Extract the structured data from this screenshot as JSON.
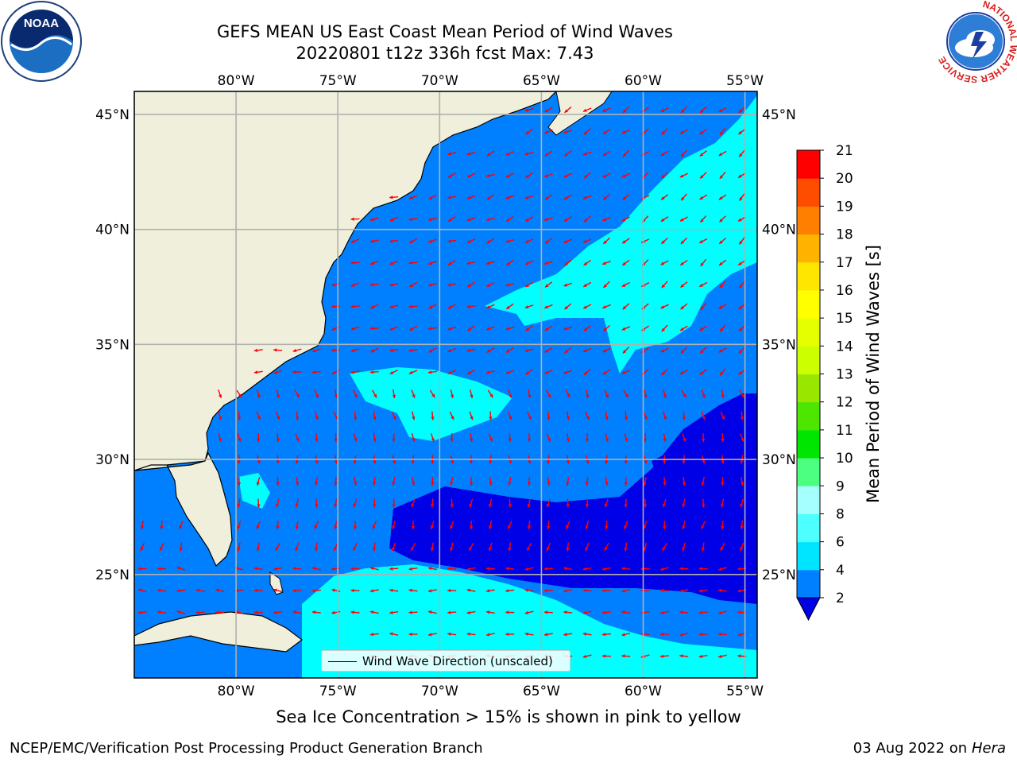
{
  "title": {
    "line1": "GEFS MEAN US East Coast Mean Period of Wind Waves",
    "line2": "20220801 t12z 336h fcst   Max: 7.43"
  },
  "logos": {
    "noaa_text": "NOAA",
    "nws_ring_text": "NATIONAL WEATHER SERVICE"
  },
  "chart_data": {
    "type": "map-contour",
    "projection": "lat-lon",
    "lon_range": [
      -85,
      -54.4
    ],
    "lat_range": [
      20.5,
      46
    ],
    "lon_ticks": [
      -80,
      -75,
      -70,
      -65,
      -60,
      -55
    ],
    "lat_ticks": [
      25,
      30,
      35,
      40,
      45
    ],
    "lon_tick_labels": [
      "80°W",
      "75°W",
      "70°W",
      "65°W",
      "60°W",
      "55°W"
    ],
    "lat_tick_labels": [
      "25°N",
      "30°N",
      "35°N",
      "40°N",
      "45°N"
    ],
    "grid": true,
    "colorbar": {
      "label": "Mean Period of Wind Waves [s]",
      "levels": [
        2,
        4,
        6,
        8,
        9,
        10,
        11,
        12,
        13,
        14,
        15,
        16,
        17,
        18,
        19,
        20,
        21
      ],
      "tick_labels": [
        "2",
        "4",
        "6",
        "8",
        "9",
        "10",
        "11",
        "12",
        "13",
        "14",
        "15",
        "16",
        "17",
        "18",
        "19",
        "20",
        "21"
      ],
      "colors": [
        "#0080ff",
        "#00e5ff",
        "#4dffff",
        "#a6ffff",
        "#4dff80",
        "#00e600",
        "#4ce600",
        "#99e600",
        "#ccff00",
        "#e6ff00",
        "#ffff00",
        "#ffe600",
        "#ffb300",
        "#ff8000",
        "#ff4d00",
        "#ff0000"
      ],
      "under_color": "#0000e6",
      "extend": "min"
    },
    "regions": [
      {
        "name": "main field",
        "value_range": [
          2,
          4
        ],
        "color": "#0080ff"
      },
      {
        "name": "Sargasso low band",
        "value_range": [
          0,
          2
        ],
        "color": "#0000e6"
      },
      {
        "name": "offshore elevated",
        "value_range": [
          4,
          6
        ],
        "color": "#00ffff"
      }
    ],
    "land_color": "#efefdc",
    "vector_color": "#ff0000",
    "vector_legend": "Wind Wave Direction (unscaled)",
    "max_value": 7.43
  },
  "subtitle": "Sea Ice Concentration > 15% is shown in pink to yellow",
  "footer": {
    "left": "NCEP/EMC/Verification Post Processing Product Generation Branch",
    "date": "03 Aug 2022 on",
    "machine": "Hera"
  }
}
